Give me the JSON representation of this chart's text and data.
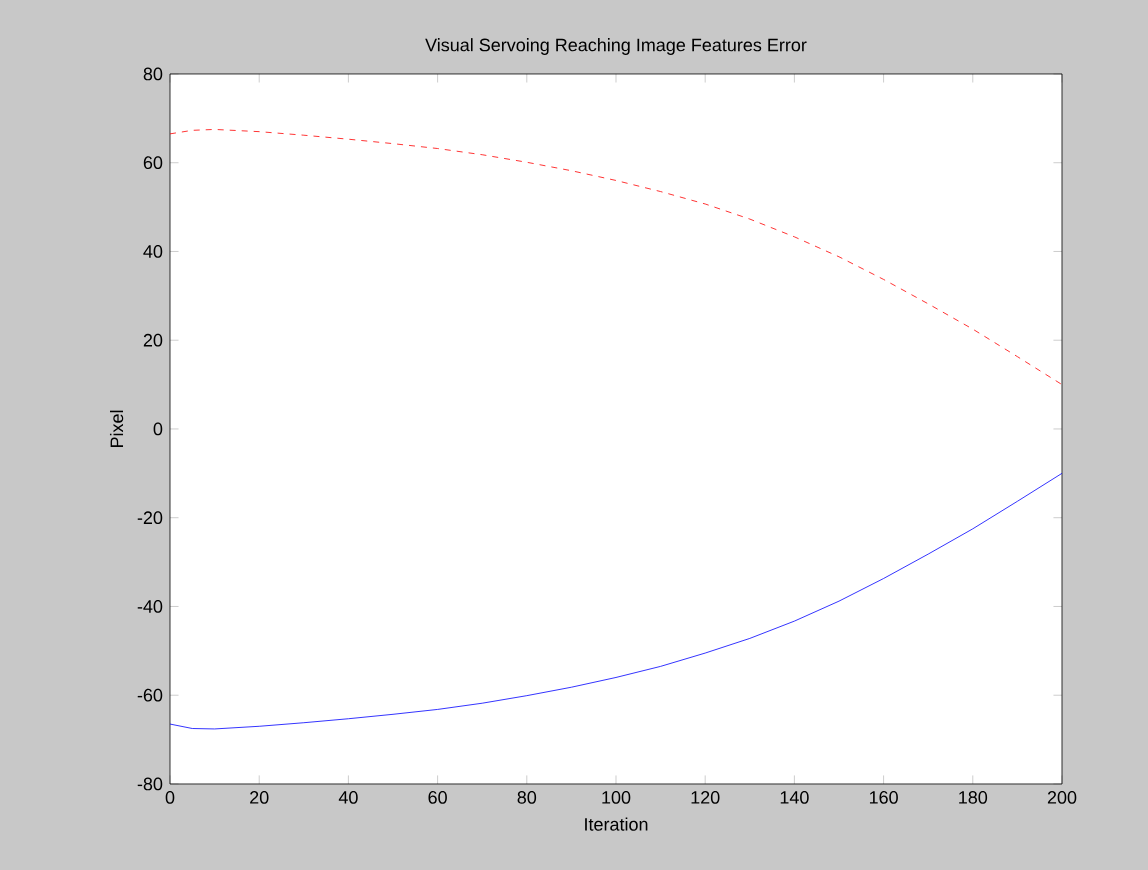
{
  "chart_data": {
    "type": "line",
    "title": "Visual Servoing Reaching Image Features Error",
    "xlabel": "Iteration",
    "ylabel": "Pixel",
    "xlim": [
      0,
      200
    ],
    "ylim": [
      -80,
      80
    ],
    "xticks": [
      0,
      20,
      40,
      60,
      80,
      100,
      120,
      140,
      160,
      180,
      200
    ],
    "yticks": [
      -80,
      -60,
      -40,
      -20,
      0,
      20,
      40,
      60,
      80
    ],
    "grid": false,
    "series": [
      {
        "color": "#ff0000",
        "line_style": "dashed",
        "x": [
          0,
          5,
          10,
          20,
          30,
          40,
          50,
          60,
          70,
          80,
          90,
          100,
          110,
          120,
          130,
          140,
          150,
          160,
          170,
          180,
          190,
          200
        ],
        "values": [
          66.5,
          67.3,
          67.5,
          67,
          66.2,
          65.3,
          64.3,
          63.2,
          61.8,
          60.1,
          58.2,
          56,
          53.5,
          50.7,
          47.3,
          43.3,
          38.8,
          33.7,
          28.2,
          22.5,
          16.3,
          10
        ]
      },
      {
        "color": "#0000ff",
        "line_style": "solid",
        "x": [
          0,
          5,
          10,
          20,
          30,
          40,
          50,
          60,
          70,
          80,
          90,
          100,
          110,
          120,
          130,
          140,
          150,
          160,
          170,
          180,
          190,
          200
        ],
        "values": [
          -66.5,
          -67.5,
          -67.6,
          -67,
          -66.2,
          -65.3,
          -64.3,
          -63.2,
          -61.8,
          -60.1,
          -58.2,
          -56,
          -53.5,
          -50.5,
          -47.2,
          -43.3,
          -38.8,
          -33.7,
          -28.2,
          -22.5,
          -16.3,
          -10
        ]
      }
    ]
  }
}
